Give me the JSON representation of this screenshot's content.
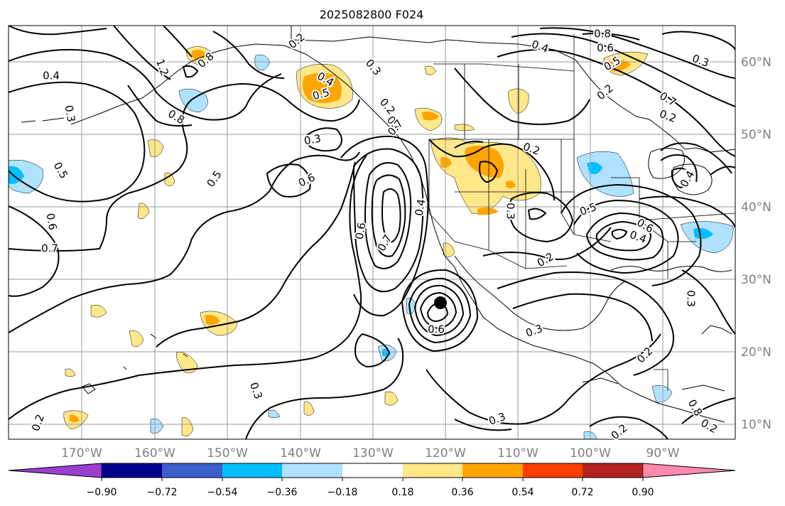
{
  "title": "2025082800 F024",
  "map": {
    "lat_labels": [
      "60°N",
      "50°N",
      "40°N",
      "30°N",
      "20°N",
      "10°N"
    ],
    "lon_labels": [
      "170°W",
      "160°W",
      "150°W",
      "140°W",
      "130°W",
      "120°W",
      "110°W",
      "100°W",
      "90°W"
    ]
  },
  "colorbar": {
    "ticks": [
      "−0.90",
      "−0.72",
      "−0.54",
      "−0.36",
      "−0.18",
      "0.18",
      "0.36",
      "0.54",
      "0.72",
      "0.90"
    ],
    "colors": [
      "#9b3fd1",
      "#00008b",
      "#3a5fcd",
      "#00bfff",
      "#aee2ff",
      "#ffffff",
      "#ffe78a",
      "#ffa500",
      "#ff3c00",
      "#b22222",
      "#ff8aad"
    ]
  },
  "contour_labels": [
    "0.2",
    "0.3",
    "0.4",
    "0.5",
    "0.6",
    "0.7",
    "0.8",
    "1.2",
    "0.8",
    "0.7",
    "0.6",
    "0.5",
    "0.4",
    "0.3",
    "0.2",
    "0.4",
    "0.3",
    "0.5",
    "0.2",
    "0.6",
    "0.4",
    "0.2",
    "0.3",
    "0.5",
    "0.4",
    "0.6",
    "0.2",
    "0.3",
    "0.8",
    "0.3",
    "0.2",
    "0.3",
    "0.6",
    "0.4",
    "0.7",
    "0.8",
    "0.6",
    "0.5",
    "0.3",
    "0.2",
    "0.2",
    "0.3",
    "0.2",
    "0.4",
    "0.7",
    "0.2"
  ]
}
